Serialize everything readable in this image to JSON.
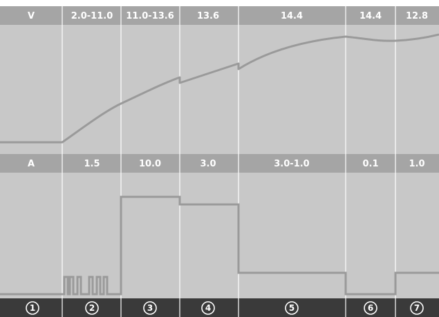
{
  "chart_data": {
    "type": "line",
    "title": "",
    "stages": [
      "1",
      "2",
      "3",
      "4",
      "5",
      "6",
      "7"
    ],
    "voltage": {
      "label": "V",
      "stage_values": [
        "2.0-11.0",
        "11.0-13.6",
        "13.6",
        "14.4",
        "14.4",
        "12.8"
      ]
    },
    "current": {
      "label": "A",
      "stage_values": [
        "1.5",
        "10.0",
        "3.0",
        "3.0-1.0",
        "0.1",
        "1.0"
      ]
    },
    "colors": {
      "background": "#c8c8c8",
      "header_band": "#a5a5a5",
      "footer_band": "#3a3a3a",
      "curve": "#9a9a9a",
      "divider": "#ffffff",
      "text": "#ffffff"
    },
    "grid": false,
    "legend": "none"
  }
}
